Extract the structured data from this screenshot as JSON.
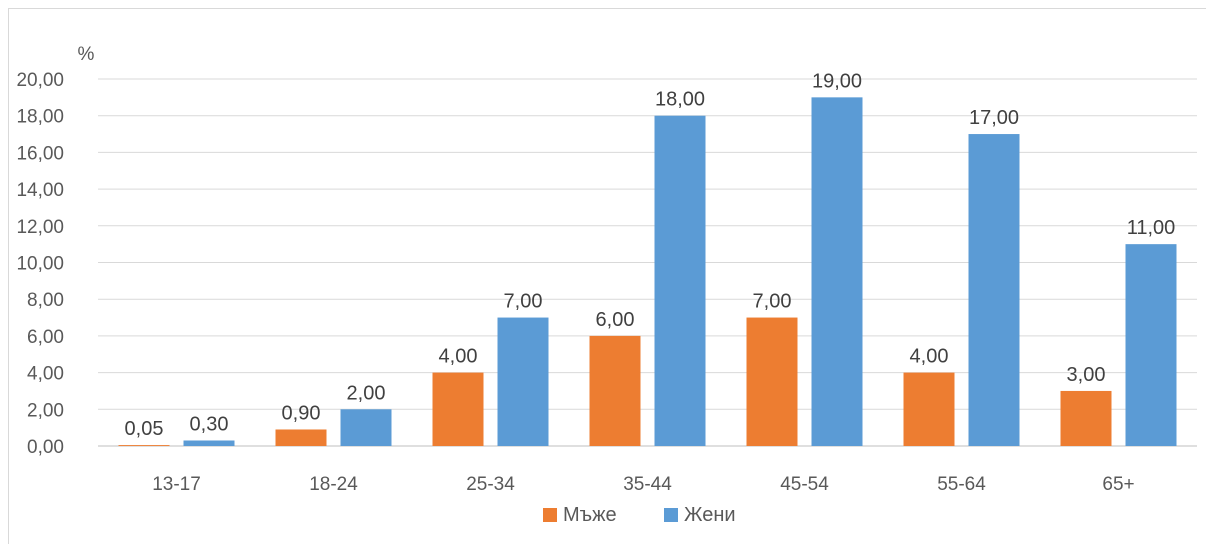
{
  "chart_data": {
    "type": "bar",
    "ylabel": "%",
    "ylim": [
      0,
      20
    ],
    "ytick_step": 2,
    "ytick_labels": [
      "0,00",
      "2,00",
      "4,00",
      "6,00",
      "8,00",
      "10,00",
      "12,00",
      "14,00",
      "16,00",
      "18,00",
      "20,00"
    ],
    "categories": [
      "13-17",
      "18-24",
      "25-34",
      "35-44",
      "45-54",
      "55-64",
      "65+"
    ],
    "series": [
      {
        "name": "Мъже",
        "color": "#ED7D31",
        "values": [
          0.05,
          0.9,
          4,
          6,
          7,
          4,
          3
        ],
        "labels": [
          "0,05",
          "0,90",
          "4,00",
          "6,00",
          "7,00",
          "4,00",
          "3,00"
        ]
      },
      {
        "name": "Жени",
        "color": "#5B9BD5",
        "values": [
          0.3,
          2,
          7,
          18,
          19,
          17,
          11
        ],
        "labels": [
          "0,30",
          "2,00",
          "7,00",
          "18,00",
          "19,00",
          "17,00",
          "11,00"
        ]
      }
    ],
    "grid": true,
    "legend_position": "bottom"
  }
}
